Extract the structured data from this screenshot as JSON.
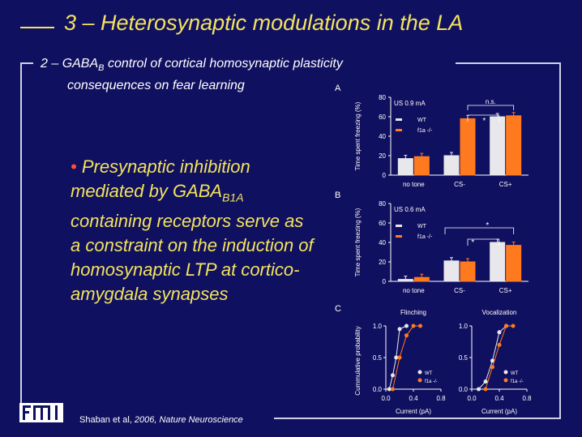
{
  "title": "3 – Heterosynaptic modulations in the LA",
  "subtitle": {
    "line1_prefix": "2 – GABA",
    "line1_sub": "B",
    "line1_suffix": " control of cortical homosynaptic plasticity",
    "line2": "consequences on fear learning"
  },
  "bullet": {
    "dot": "•",
    "text_before_sub": " Presynaptic inhibition mediated by GABA",
    "sub": "B1A",
    "text_after_sub": " containing receptors serve as a constraint on the induction of homosynaptic LTP at cortico-amygdala synapses"
  },
  "logo": {
    "text": "FMI"
  },
  "citation": {
    "authors": "Shaban et al, ",
    "journal": "2006, Nature Neuroscience"
  },
  "colors": {
    "background": "#101060",
    "title": "#f3e35c",
    "wt": "#e8e8ec",
    "ko": "#ff7a1e",
    "bullet_dot": "#ff5030"
  },
  "panels": {
    "a": {
      "letter": "A"
    },
    "b": {
      "letter": "B"
    },
    "c": {
      "letter": "C"
    }
  },
  "chart_data": [
    {
      "type": "bar",
      "title": "US 0.9 mA",
      "ylabel": "Time spent freezing (%)",
      "ylim": [
        0,
        80
      ],
      "yticks": [
        0,
        20,
        40,
        60,
        80
      ],
      "categories": [
        "no tone",
        "CS-",
        "CS+"
      ],
      "series": [
        {
          "name": "WT",
          "color": "#e8e8ec",
          "values": [
            17,
            20,
            60
          ]
        },
        {
          "name": "f1a -/-",
          "color": "#ff7a1e",
          "values": [
            19,
            58,
            61
          ]
        }
      ],
      "annotations": [
        "*",
        "n.s."
      ]
    },
    {
      "type": "bar",
      "title": "US 0.6 mA",
      "ylabel": "Time spent freezing (%)",
      "ylim": [
        0,
        80
      ],
      "yticks": [
        0,
        20,
        40,
        60,
        80
      ],
      "categories": [
        "no tone",
        "CS-",
        "CS+"
      ],
      "series": [
        {
          "name": "WT",
          "color": "#e8e8ec",
          "values": [
            2,
            21,
            40
          ]
        },
        {
          "name": "f1a -/-",
          "color": "#ff7a1e",
          "values": [
            4,
            20,
            37
          ]
        }
      ],
      "annotations": [
        "*",
        "*"
      ]
    },
    {
      "type": "line",
      "title": "Flinching",
      "xlabel": "Current (pA)",
      "ylabel": "Cummulative probability",
      "xlim": [
        0,
        0.8
      ],
      "ylim": [
        0,
        1
      ],
      "xticks": [
        "0.0",
        "0.4",
        "0.8"
      ],
      "yticks": [
        "0.0",
        "0.5",
        "1.0"
      ],
      "series": [
        {
          "name": "WT",
          "color": "#e8e8ec",
          "x": [
            0.05,
            0.1,
            0.15,
            0.2,
            0.3
          ],
          "y": [
            0,
            0.22,
            0.5,
            0.95,
            1.0
          ]
        },
        {
          "name": "f1a -/-",
          "color": "#ff7a1e",
          "x": [
            0.1,
            0.2,
            0.3,
            0.4,
            0.5
          ],
          "y": [
            0,
            0.5,
            0.85,
            1.0,
            1.0
          ]
        }
      ]
    },
    {
      "type": "line",
      "title": "Vocalization",
      "xlabel": "Current (pA)",
      "ylabel": "",
      "xlim": [
        0,
        0.8
      ],
      "ylim": [
        0,
        1
      ],
      "xticks": [
        "0.0",
        "0.4",
        "0.8"
      ],
      "yticks": [
        "0.0",
        "0.5",
        "1.0"
      ],
      "series": [
        {
          "name": "WT",
          "color": "#e8e8ec",
          "x": [
            0.1,
            0.2,
            0.3,
            0.4,
            0.5
          ],
          "y": [
            0,
            0.12,
            0.45,
            0.9,
            1.0
          ]
        },
        {
          "name": "f1a -/-",
          "color": "#ff7a1e",
          "x": [
            0.2,
            0.3,
            0.4,
            0.5,
            0.6
          ],
          "y": [
            0,
            0.35,
            0.7,
            1.0,
            1.0
          ]
        }
      ]
    }
  ]
}
